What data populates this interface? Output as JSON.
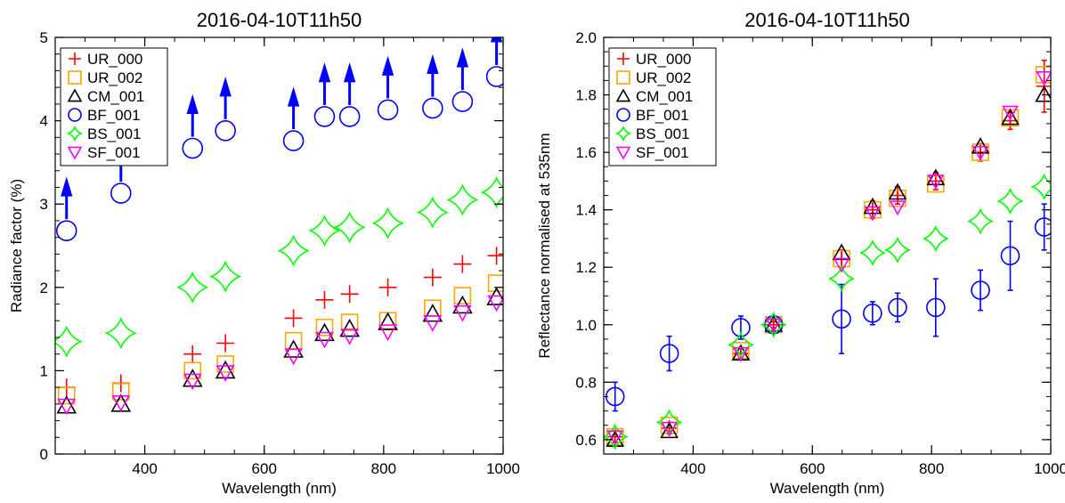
{
  "chart_data": [
    {
      "type": "scatter",
      "title": "2016-04-10T11h50",
      "xlabel": "Wavelength (nm)",
      "ylabel": "Radiance factor (%)",
      "xlim": [
        250,
        1000
      ],
      "ylim": [
        0,
        5
      ],
      "xticks": [
        400,
        600,
        800,
        1000
      ],
      "yticks": [
        0,
        1,
        2,
        3,
        4,
        5
      ],
      "legend": "top-left",
      "series": [
        {
          "name": "UR_000",
          "marker": "plus",
          "color": "#ff0000",
          "x": [
            269,
            360,
            480,
            535,
            649,
            701,
            743,
            807,
            882,
            932,
            989
          ],
          "y": [
            0.8,
            0.85,
            1.2,
            1.33,
            1.63,
            1.85,
            1.92,
            2.0,
            2.12,
            2.28,
            2.38
          ]
        },
        {
          "name": "UR_002",
          "marker": "square",
          "color": "#ffa500",
          "x": [
            269,
            360,
            480,
            535,
            649,
            701,
            743,
            807,
            882,
            932,
            989
          ],
          "y": [
            0.7,
            0.75,
            1.0,
            1.08,
            1.36,
            1.52,
            1.58,
            1.6,
            1.75,
            1.9,
            2.05
          ]
        },
        {
          "name": "CM_001",
          "marker": "triangle-up",
          "color": "#000000",
          "x": [
            269,
            360,
            480,
            535,
            649,
            701,
            743,
            807,
            882,
            932,
            989
          ],
          "y": [
            0.58,
            0.6,
            0.9,
            1.0,
            1.25,
            1.45,
            1.5,
            1.58,
            1.68,
            1.78,
            1.88
          ]
        },
        {
          "name": "BF_001",
          "marker": "circle",
          "color": "#0000ff",
          "x": [
            269,
            360,
            480,
            535,
            649,
            701,
            743,
            807,
            882,
            932,
            989
          ],
          "y": [
            2.68,
            3.13,
            3.67,
            3.88,
            3.76,
            4.05,
            4.05,
            4.13,
            4.15,
            4.23,
            4.53
          ],
          "lower_limit_arrows": true
        },
        {
          "name": "BS_001",
          "marker": "star4",
          "color": "#00ff00",
          "x": [
            269,
            360,
            480,
            535,
            649,
            701,
            743,
            807,
            882,
            932,
            989
          ],
          "y": [
            1.35,
            1.45,
            2.0,
            2.13,
            2.44,
            2.68,
            2.72,
            2.77,
            2.9,
            3.05,
            3.14
          ]
        },
        {
          "name": "SF_001",
          "marker": "triangle-down",
          "color": "#ff00ff",
          "x": [
            269,
            360,
            480,
            535,
            649,
            701,
            743,
            807,
            882,
            932,
            989
          ],
          "y": [
            0.58,
            0.62,
            0.88,
            0.98,
            1.18,
            1.38,
            1.42,
            1.47,
            1.58,
            1.7,
            1.82
          ]
        }
      ]
    },
    {
      "type": "scatter",
      "title": "2016-04-10T11h50",
      "xlabel": "Wavelength (nm)",
      "ylabel": "Reflectance normalised at 535nm",
      "xlim": [
        250,
        1000
      ],
      "ylim": [
        0.55,
        2.0
      ],
      "xticks": [
        400,
        600,
        800,
        1000
      ],
      "yticks": [
        0.6,
        0.8,
        1.0,
        1.2,
        1.4,
        1.6,
        1.8,
        2.0
      ],
      "ytick_labels": [
        "0.6",
        "0.8",
        "1.0",
        "1.2",
        "1.4",
        "1.6",
        "1.8",
        "2.0"
      ],
      "legend": "top-left",
      "series": [
        {
          "name": "UR_000",
          "marker": "plus",
          "color": "#ff0000",
          "x": [
            269,
            360,
            480,
            535,
            649,
            701,
            743,
            807,
            882,
            932,
            989
          ],
          "y": [
            0.61,
            0.64,
            0.9,
            1.0,
            1.23,
            1.4,
            1.45,
            1.5,
            1.6,
            1.71,
            1.83
          ],
          "err": [
            0.02,
            0.02,
            0.02,
            0.01,
            0.03,
            0.03,
            0.03,
            0.03,
            0.03,
            0.03,
            0.09
          ]
        },
        {
          "name": "UR_002",
          "marker": "square",
          "color": "#ffa500",
          "x": [
            269,
            360,
            480,
            535,
            649,
            701,
            743,
            807,
            882,
            932,
            989
          ],
          "y": [
            0.61,
            0.65,
            0.91,
            1.0,
            1.23,
            1.4,
            1.44,
            1.49,
            1.6,
            1.72,
            1.87
          ]
        },
        {
          "name": "CM_001",
          "marker": "triangle-up",
          "color": "#000000",
          "x": [
            269,
            360,
            480,
            535,
            649,
            701,
            743,
            807,
            882,
            932,
            989
          ],
          "y": [
            0.6,
            0.63,
            0.9,
            1.0,
            1.25,
            1.41,
            1.46,
            1.51,
            1.62,
            1.72,
            1.8
          ]
        },
        {
          "name": "BF_001",
          "marker": "circle",
          "color": "#0000ff",
          "x": [
            269,
            360,
            480,
            535,
            649,
            701,
            743,
            807,
            882,
            932,
            989
          ],
          "y": [
            0.75,
            0.9,
            0.99,
            1.0,
            1.02,
            1.04,
            1.06,
            1.06,
            1.12,
            1.24,
            1.34
          ],
          "err": [
            0.05,
            0.06,
            0.04,
            0.0,
            0.12,
            0.04,
            0.05,
            0.1,
            0.07,
            0.12,
            0.08
          ]
        },
        {
          "name": "BS_001",
          "marker": "star4",
          "color": "#00ff00",
          "x": [
            269,
            360,
            480,
            535,
            649,
            701,
            743,
            807,
            882,
            932,
            989
          ],
          "y": [
            0.61,
            0.66,
            0.93,
            1.0,
            1.16,
            1.25,
            1.26,
            1.3,
            1.36,
            1.43,
            1.48
          ]
        },
        {
          "name": "SF_001",
          "marker": "triangle-down",
          "color": "#ff00ff",
          "x": [
            269,
            360,
            480,
            535,
            649,
            701,
            743,
            807,
            882,
            932,
            989
          ],
          "y": [
            0.61,
            0.64,
            0.9,
            1.0,
            1.21,
            1.39,
            1.41,
            1.5,
            1.6,
            1.74,
            1.86
          ]
        }
      ]
    }
  ]
}
